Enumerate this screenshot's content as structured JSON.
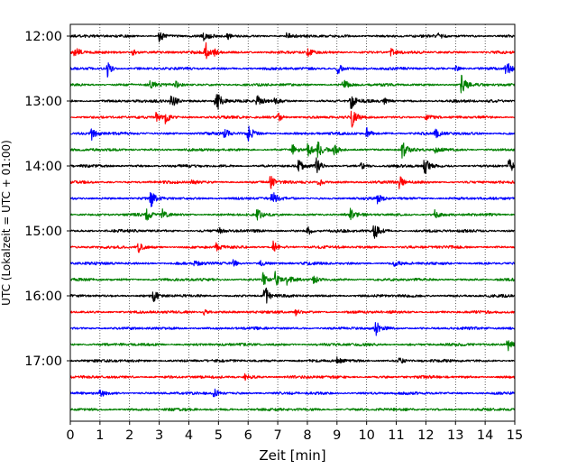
{
  "chart_data": {
    "type": "line",
    "title": "",
    "xlabel": "Zeit  [min]",
    "ylabel": "UTC (Lokalzeit = UTC + 01:00)",
    "xlim": [
      0,
      15
    ],
    "x_ticks": [
      "0",
      "1",
      "2",
      "3",
      "4",
      "5",
      "6",
      "7",
      "8",
      "9",
      "10",
      "11",
      "12",
      "13",
      "14",
      "15"
    ],
    "y_tick_labels": [
      "12:00",
      "13:00",
      "14:00",
      "15:00",
      "16:00",
      "17:00"
    ],
    "row_interval_minutes": 15,
    "row_start": "12:00",
    "row_count": 24,
    "row_colors": [
      "#000000",
      "#ff0000",
      "#0000ff",
      "#008000"
    ],
    "grid": "vertical dotted lines at each minute",
    "series": [
      {
        "start": "12:00",
        "color": "#000000",
        "events": [
          [
            3.0,
            8
          ],
          [
            4.5,
            5
          ],
          [
            5.3,
            5
          ],
          [
            7.3,
            4
          ],
          [
            12.4,
            4
          ]
        ]
      },
      {
        "start": "12:15",
        "color": "#ff0000",
        "events": [
          [
            0.15,
            8
          ],
          [
            2.1,
            4
          ],
          [
            4.55,
            14
          ],
          [
            4.85,
            5
          ],
          [
            8.0,
            5
          ],
          [
            10.8,
            5
          ]
        ]
      },
      {
        "start": "12:30",
        "color": "#0000ff",
        "events": [
          [
            1.25,
            12
          ],
          [
            9.0,
            9
          ],
          [
            13.0,
            4
          ],
          [
            14.7,
            14
          ]
        ]
      },
      {
        "start": "12:45",
        "color": "#008000",
        "events": [
          [
            2.7,
            7
          ],
          [
            3.55,
            5
          ],
          [
            9.2,
            9
          ],
          [
            13.2,
            15
          ]
        ]
      },
      {
        "start": "13:00",
        "color": "#000000",
        "events": [
          [
            3.4,
            14
          ],
          [
            4.9,
            22
          ],
          [
            6.3,
            9
          ],
          [
            6.9,
            5
          ],
          [
            9.45,
            12
          ],
          [
            10.6,
            5
          ]
        ]
      },
      {
        "start": "13:15",
        "color": "#ff0000",
        "events": [
          [
            2.9,
            7
          ],
          [
            3.2,
            8
          ],
          [
            7.0,
            7
          ],
          [
            9.5,
            13
          ],
          [
            12.0,
            6
          ]
        ]
      },
      {
        "start": "13:30",
        "color": "#0000ff",
        "events": [
          [
            0.7,
            9
          ],
          [
            5.2,
            7
          ],
          [
            6.0,
            12
          ],
          [
            10.0,
            7
          ],
          [
            12.3,
            7
          ]
        ]
      },
      {
        "start": "13:45",
        "color": "#008000",
        "events": [
          [
            7.5,
            7
          ],
          [
            8.0,
            9
          ],
          [
            8.35,
            10
          ],
          [
            8.9,
            7
          ],
          [
            11.2,
            12
          ],
          [
            12.3,
            5
          ]
        ]
      },
      {
        "start": "14:00",
        "color": "#000000",
        "events": [
          [
            7.7,
            8
          ],
          [
            8.3,
            9
          ],
          [
            9.8,
            6
          ],
          [
            11.95,
            13
          ],
          [
            14.8,
            10
          ]
        ]
      },
      {
        "start": "14:15",
        "color": "#ff0000",
        "events": [
          [
            4.1,
            4
          ],
          [
            6.75,
            9
          ],
          [
            8.35,
            7
          ],
          [
            11.1,
            9
          ]
        ]
      },
      {
        "start": "14:30",
        "color": "#0000ff",
        "events": [
          [
            2.7,
            13
          ],
          [
            6.8,
            10
          ],
          [
            10.35,
            6
          ]
        ]
      },
      {
        "start": "14:45",
        "color": "#008000",
        "events": [
          [
            2.55,
            9
          ],
          [
            3.1,
            7
          ],
          [
            6.3,
            8
          ],
          [
            9.45,
            7
          ],
          [
            12.3,
            5
          ]
        ]
      },
      {
        "start": "15:00",
        "color": "#000000",
        "events": [
          [
            5.0,
            4
          ],
          [
            8.0,
            6
          ],
          [
            10.25,
            14
          ]
        ]
      },
      {
        "start": "15:15",
        "color": "#ff0000",
        "events": [
          [
            2.3,
            7
          ],
          [
            4.9,
            5
          ],
          [
            6.85,
            8
          ]
        ]
      },
      {
        "start": "15:30",
        "color": "#0000ff",
        "events": [
          [
            4.2,
            5
          ],
          [
            5.5,
            4
          ],
          [
            6.4,
            4
          ],
          [
            10.9,
            5
          ]
        ]
      },
      {
        "start": "15:45",
        "color": "#008000",
        "events": [
          [
            6.5,
            8
          ],
          [
            6.9,
            11
          ],
          [
            7.3,
            6
          ],
          [
            8.2,
            6
          ]
        ]
      },
      {
        "start": "16:00",
        "color": "#000000",
        "events": [
          [
            2.8,
            7
          ],
          [
            6.55,
            15
          ]
        ]
      },
      {
        "start": "16:15",
        "color": "#ff0000",
        "events": [
          [
            4.5,
            4
          ],
          [
            7.6,
            4
          ]
        ]
      },
      {
        "start": "16:30",
        "color": "#0000ff",
        "events": [
          [
            10.3,
            10
          ]
        ]
      },
      {
        "start": "16:45",
        "color": "#008000",
        "events": [
          [
            14.75,
            10
          ]
        ]
      },
      {
        "start": "17:00",
        "color": "#000000",
        "events": [
          [
            9.0,
            4
          ],
          [
            11.1,
            4
          ]
        ]
      },
      {
        "start": "17:15",
        "color": "#ff0000",
        "events": [
          [
            5.9,
            4
          ]
        ]
      },
      {
        "start": "17:30",
        "color": "#0000ff",
        "events": [
          [
            1.0,
            5
          ],
          [
            4.85,
            7
          ]
        ]
      },
      {
        "start": "17:45",
        "color": "#008000",
        "events": []
      }
    ]
  }
}
